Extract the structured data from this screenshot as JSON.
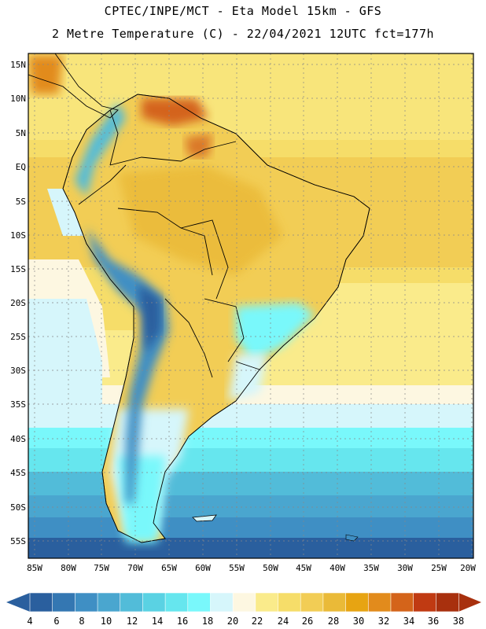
{
  "header": {
    "line1": "CPTEC/INPE/MCT -  Eta Model 15km - GFS",
    "line2": "2 Metre Temperature (C) - 22/04/2021 12UTC fct=177h"
  },
  "map": {
    "lat_labels": [
      "15N",
      "10N",
      "5N",
      "EQ",
      "5S",
      "10S",
      "15S",
      "20S",
      "25S",
      "30S",
      "35S",
      "40S",
      "45S",
      "50S",
      "55S"
    ],
    "lon_labels": [
      "85W",
      "80W",
      "75W",
      "70W",
      "65W",
      "60W",
      "55W",
      "50W",
      "45W",
      "40W",
      "35W",
      "30W",
      "25W",
      "20W"
    ]
  },
  "legend": {
    "values": [
      "4",
      "6",
      "8",
      "10",
      "12",
      "14",
      "16",
      "18",
      "20",
      "22",
      "24",
      "26",
      "28",
      "30",
      "32",
      "34",
      "36",
      "38"
    ],
    "colors": [
      "#2a5f9e",
      "#3477b2",
      "#3f8fc4",
      "#4aa6cf",
      "#52bcd9",
      "#5ad2e3",
      "#66e6ee",
      "#79f8fb",
      "#d6f6fb",
      "#fdf7e1",
      "#faeb8b",
      "#f6dd69",
      "#f2cd55",
      "#eaba38",
      "#e7a412",
      "#e28b1c",
      "#d4641a",
      "#c03a12",
      "#a8300e"
    ],
    "low_arrow_color": "#2a5f9e",
    "high_arrow_color": "#a8300e"
  }
}
